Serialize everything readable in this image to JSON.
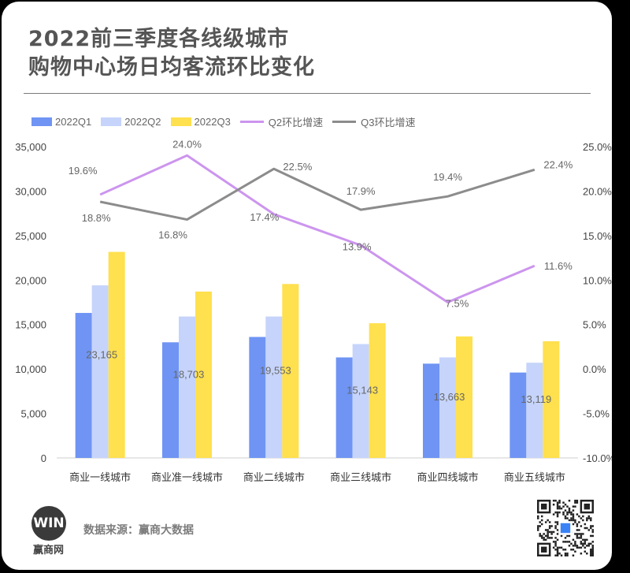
{
  "title_line1": "2022前三季度各线级城市",
  "title_line2": "购物中心场日均客流环比变化",
  "legend": {
    "q1": "2022Q1",
    "q2": "2022Q2",
    "q3": "2022Q3",
    "q2_growth": "Q2环比增速",
    "q3_growth": "Q3环比增速"
  },
  "colors": {
    "q1": "#6f94f3",
    "q2": "#c6d4fb",
    "q3": "#ffe04e",
    "q2_growth": "#cc95ee",
    "q3_growth": "#8c8c8c",
    "text": "#555555"
  },
  "footer": {
    "source": "数据来源：赢商大数据"
  },
  "logo": {
    "mark": "WIN",
    "name": "赢商网"
  },
  "chart_data": {
    "type": "bar",
    "categories": [
      "商业一线城市",
      "商业准一线城市",
      "商业二线城市",
      "商业三线城市",
      "商业四线城市",
      "商业五线城市"
    ],
    "series": [
      {
        "name": "2022Q1",
        "values": [
          16300,
          13000,
          13600,
          11300,
          10600,
          9600
        ]
      },
      {
        "name": "2022Q2",
        "values": [
          19400,
          15900,
          15900,
          12800,
          11300,
          10700
        ]
      },
      {
        "name": "2022Q3",
        "values": [
          23165,
          18703,
          19553,
          15143,
          13663,
          13119
        ]
      }
    ],
    "bar_labels": [
      "23,165",
      "18,703",
      "19,553",
      "15,143",
      "13,663",
      "13,119"
    ],
    "lines": [
      {
        "name": "Q2环比增速",
        "values": [
          19.6,
          24.0,
          17.4,
          13.9,
          7.5,
          11.6
        ],
        "labels": [
          "19.6%",
          "24.0%",
          "17.4%",
          "13.9%",
          "7.5%",
          "11.6%"
        ]
      },
      {
        "name": "Q3环比增速",
        "values": [
          18.8,
          16.8,
          22.5,
          17.9,
          19.4,
          22.4
        ],
        "labels": [
          "18.8%",
          "16.8%",
          "22.5%",
          "17.9%",
          "19.4%",
          "22.4%"
        ]
      }
    ],
    "y_left": {
      "ylim": [
        0,
        35000
      ],
      "ticks": [
        "0",
        "5,000",
        "10,000",
        "15,000",
        "20,000",
        "25,000",
        "30,000",
        "35,000"
      ]
    },
    "y_right": {
      "ylim": [
        -10,
        25
      ],
      "ticks": [
        "-10.0%",
        "-5.0%",
        "0.0%",
        "5.0%",
        "10.0%",
        "15.0%",
        "20.0%",
        "25.0%"
      ]
    },
    "legend_position": "top-left",
    "grid": false
  }
}
